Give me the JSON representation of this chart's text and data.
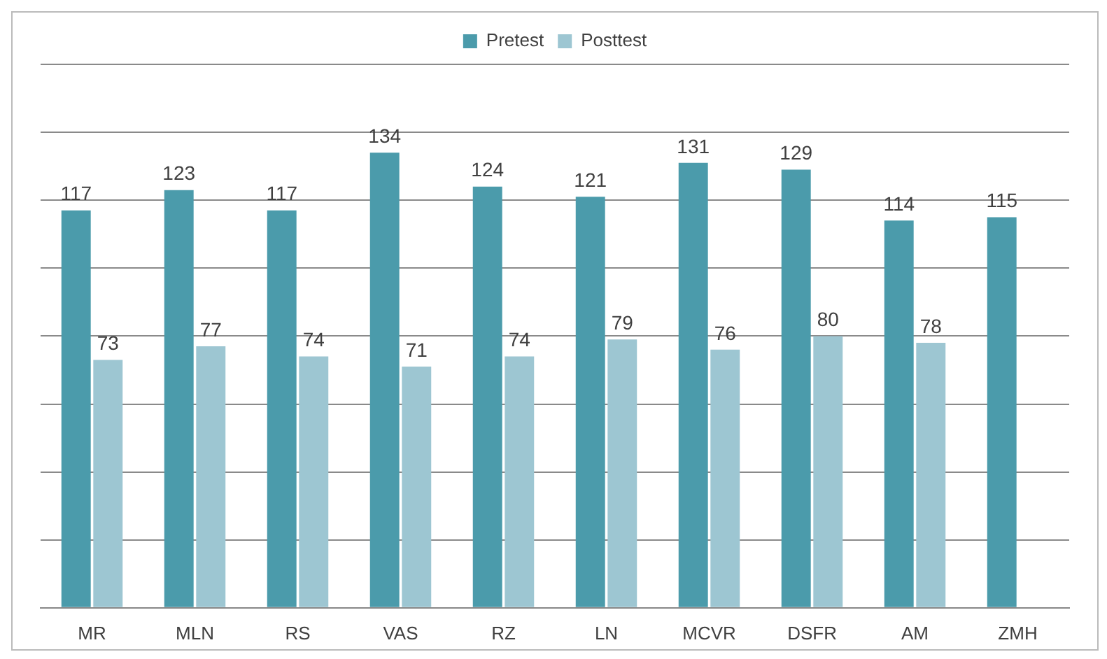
{
  "chart_data": {
    "type": "bar",
    "categories": [
      "MR",
      "MLN",
      "RS",
      "VAS",
      "RZ",
      "LN",
      "MCVR",
      "DSFR",
      "AM",
      "ZMH"
    ],
    "series": [
      {
        "name": "Pretest",
        "color": "#4b9bab",
        "values": [
          117,
          123,
          117,
          134,
          124,
          121,
          131,
          129,
          114,
          115
        ]
      },
      {
        "name": "Posttest",
        "color": "#9dc6d2",
        "values": [
          73,
          77,
          74,
          71,
          74,
          79,
          76,
          80,
          78,
          null
        ]
      }
    ],
    "ylim": [
      0,
      160
    ],
    "yticks": [
      {
        "value": 0,
        "label": null
      },
      {
        "value": 20,
        "label": null
      },
      {
        "value": 40,
        "label": null
      },
      {
        "value": 60,
        "label": null
      },
      {
        "value": 80,
        "label": null
      },
      {
        "value": 100,
        "label": null
      },
      {
        "value": 120,
        "label": null
      },
      {
        "value": 140,
        "label": null
      },
      {
        "value": 160,
        "label": null
      }
    ],
    "tick_labels": "x",
    "grid": "y",
    "legend": "top",
    "data_labels": true
  }
}
